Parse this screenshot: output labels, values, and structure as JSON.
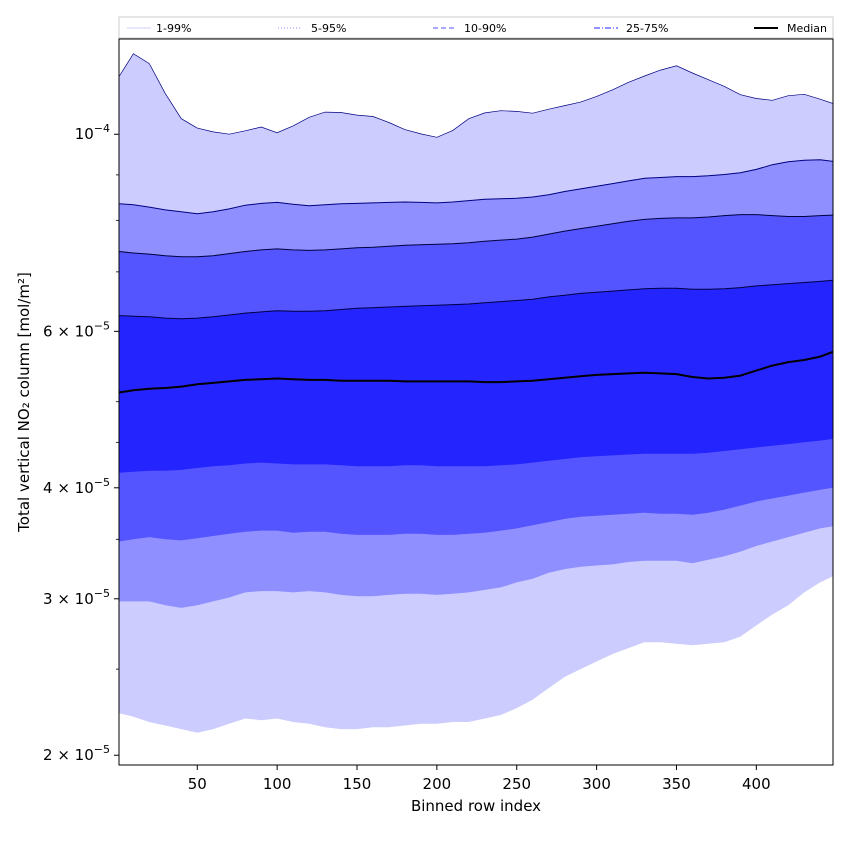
{
  "chart_data": {
    "type": "area",
    "title": "",
    "xlabel": "Binned row index",
    "ylabel": "Total vertical NO₂ column [mol/m²]",
    "xlim": [
      1,
      448
    ],
    "ylim": [
      1.95e-05,
      0.000128
    ],
    "yscale": "log",
    "grid": false,
    "legend_position": "top",
    "xticks": [
      50,
      100,
      150,
      200,
      250,
      300,
      350,
      400
    ],
    "xtick_labels": [
      "50",
      "100",
      "150",
      "200",
      "250",
      "300",
      "350",
      "400"
    ],
    "yticks": [
      2e-05,
      3e-05,
      4e-05,
      6e-05,
      0.0001
    ],
    "ytick_labels": [
      {
        "mantissa": "2",
        "exp": "−5"
      },
      {
        "mantissa": "3",
        "exp": "−5"
      },
      {
        "mantissa": "4",
        "exp": "−5"
      },
      {
        "mantissa": "6",
        "exp": "−5"
      },
      {
        "mantissa": "",
        "exp": "−4"
      }
    ],
    "x": [
      1,
      10,
      20,
      30,
      40,
      50,
      60,
      70,
      80,
      90,
      100,
      110,
      120,
      130,
      140,
      150,
      160,
      170,
      180,
      190,
      200,
      210,
      220,
      230,
      240,
      250,
      260,
      270,
      280,
      290,
      300,
      310,
      320,
      330,
      340,
      350,
      360,
      370,
      380,
      390,
      400,
      410,
      420,
      430,
      440,
      448
    ],
    "bands": [
      {
        "name": "1-99%",
        "color": "#ccccff",
        "line_color": "#000080",
        "lower": [
          2.23e-05,
          2.21e-05,
          2.18e-05,
          2.16e-05,
          2.14e-05,
          2.12e-05,
          2.14e-05,
          2.17e-05,
          2.2e-05,
          2.19e-05,
          2.2e-05,
          2.18e-05,
          2.17e-05,
          2.15e-05,
          2.14e-05,
          2.14e-05,
          2.15e-05,
          2.15e-05,
          2.16e-05,
          2.17e-05,
          2.17e-05,
          2.18e-05,
          2.18e-05,
          2.2e-05,
          2.22e-05,
          2.26e-05,
          2.31e-05,
          2.38e-05,
          2.45e-05,
          2.5e-05,
          2.55e-05,
          2.6e-05,
          2.64e-05,
          2.68e-05,
          2.68e-05,
          2.67e-05,
          2.66e-05,
          2.67e-05,
          2.68e-05,
          2.72e-05,
          2.8e-05,
          2.88e-05,
          2.95e-05,
          3.05e-05,
          3.13e-05,
          3.18e-05
        ],
        "upper": [
          0.0001161,
          0.0001232,
          0.0001201,
          0.0001111,
          0.0001041,
          0.0001016,
          0.0001006,
          0.0001,
          0.0001009,
          0.0001019,
          0.0001004,
          0.0001022,
          0.0001045,
          0.0001059,
          0.0001058,
          0.0001051,
          0.0001047,
          0.0001031,
          0.0001012,
          0.0001001,
          9.92e-05,
          0.000101,
          0.0001041,
          0.0001057,
          0.0001063,
          0.0001061,
          0.0001056,
          0.0001067,
          0.0001077,
          0.0001087,
          0.0001103,
          0.0001122,
          0.0001144,
          0.0001163,
          0.0001181,
          0.0001194,
          0.0001172,
          0.0001152,
          0.0001132,
          0.0001108,
          0.0001097,
          0.0001092,
          0.0001105,
          0.0001109,
          0.0001095,
          0.0001083
        ]
      },
      {
        "name": "5-95%",
        "color": "#8f8fff",
        "line_color": "#000080",
        "lower": [
          2.98e-05,
          2.98e-05,
          2.98e-05,
          2.95e-05,
          2.93e-05,
          2.95e-05,
          2.98e-05,
          3.01e-05,
          3.05e-05,
          3.06e-05,
          3.06e-05,
          3.05e-05,
          3.06e-05,
          3.05e-05,
          3.03e-05,
          3.02e-05,
          3.02e-05,
          3.03e-05,
          3.04e-05,
          3.04e-05,
          3.03e-05,
          3.04e-05,
          3.05e-05,
          3.07e-05,
          3.09e-05,
          3.13e-05,
          3.16e-05,
          3.21e-05,
          3.24e-05,
          3.26e-05,
          3.27e-05,
          3.28e-05,
          3.3e-05,
          3.31e-05,
          3.31e-05,
          3.31e-05,
          3.29e-05,
          3.32e-05,
          3.35e-05,
          3.39e-05,
          3.44e-05,
          3.48e-05,
          3.52e-05,
          3.56e-05,
          3.6e-05,
          3.62e-05
        ],
        "upper": [
          8.35e-05,
          8.33e-05,
          8.28e-05,
          8.22e-05,
          8.18e-05,
          8.14e-05,
          8.18e-05,
          8.24e-05,
          8.32e-05,
          8.36e-05,
          8.38e-05,
          8.34e-05,
          8.31e-05,
          8.33e-05,
          8.35e-05,
          8.36e-05,
          8.37e-05,
          8.38e-05,
          8.39e-05,
          8.38e-05,
          8.37e-05,
          8.39e-05,
          8.42e-05,
          8.45e-05,
          8.46e-05,
          8.47e-05,
          8.5e-05,
          8.55e-05,
          8.62e-05,
          8.68e-05,
          8.74e-05,
          8.8e-05,
          8.86e-05,
          8.92e-05,
          8.94e-05,
          8.96e-05,
          8.96e-05,
          8.98e-05,
          9.01e-05,
          9.05e-05,
          9.13e-05,
          9.24e-05,
          9.31e-05,
          9.35e-05,
          9.36e-05,
          9.32e-05
        ]
      },
      {
        "name": "10-90%",
        "color": "#5555ff",
        "line_color": "#000040",
        "lower": [
          3.48e-05,
          3.5e-05,
          3.52e-05,
          3.5e-05,
          3.49e-05,
          3.51e-05,
          3.53e-05,
          3.55e-05,
          3.57e-05,
          3.58e-05,
          3.58e-05,
          3.56e-05,
          3.57e-05,
          3.57e-05,
          3.55e-05,
          3.54e-05,
          3.54e-05,
          3.54e-05,
          3.55e-05,
          3.55e-05,
          3.54e-05,
          3.54e-05,
          3.55e-05,
          3.56e-05,
          3.58e-05,
          3.6e-05,
          3.63e-05,
          3.66e-05,
          3.69e-05,
          3.71e-05,
          3.72e-05,
          3.73e-05,
          3.74e-05,
          3.75e-05,
          3.74e-05,
          3.74e-05,
          3.73e-05,
          3.75e-05,
          3.78e-05,
          3.82e-05,
          3.86e-05,
          3.89e-05,
          3.92e-05,
          3.95e-05,
          3.98e-05,
          4e-05
        ],
        "upper": [
          7.38e-05,
          7.35e-05,
          7.33e-05,
          7.3e-05,
          7.28e-05,
          7.28e-05,
          7.3e-05,
          7.34e-05,
          7.38e-05,
          7.41e-05,
          7.43e-05,
          7.41e-05,
          7.4e-05,
          7.41e-05,
          7.43e-05,
          7.45e-05,
          7.46e-05,
          7.48e-05,
          7.5e-05,
          7.51e-05,
          7.52e-05,
          7.53e-05,
          7.55e-05,
          7.58e-05,
          7.6e-05,
          7.62e-05,
          7.66e-05,
          7.72e-05,
          7.78e-05,
          7.83e-05,
          7.88e-05,
          7.93e-05,
          7.98e-05,
          8.02e-05,
          8.04e-05,
          8.05e-05,
          8.05e-05,
          8.07e-05,
          8.1e-05,
          8.12e-05,
          8.12e-05,
          8.1e-05,
          8.08e-05,
          8.08e-05,
          8.1e-05,
          8.11e-05
        ]
      },
      {
        "name": "25-75%",
        "color": "#2424ff",
        "line_color": "#000040",
        "lower": [
          4.16e-05,
          4.17e-05,
          4.18e-05,
          4.18e-05,
          4.19e-05,
          4.21e-05,
          4.23e-05,
          4.24e-05,
          4.26e-05,
          4.27e-05,
          4.26e-05,
          4.25e-05,
          4.25e-05,
          4.25e-05,
          4.24e-05,
          4.23e-05,
          4.23e-05,
          4.23e-05,
          4.24e-05,
          4.24e-05,
          4.23e-05,
          4.23e-05,
          4.23e-05,
          4.23e-05,
          4.24e-05,
          4.25e-05,
          4.27e-05,
          4.29e-05,
          4.31e-05,
          4.33e-05,
          4.34e-05,
          4.35e-05,
          4.36e-05,
          4.37e-05,
          4.37e-05,
          4.37e-05,
          4.37e-05,
          4.38e-05,
          4.4e-05,
          4.42e-05,
          4.44e-05,
          4.46e-05,
          4.48e-05,
          4.5e-05,
          4.52e-05,
          4.54e-05
        ],
        "upper": [
          6.25e-05,
          6.24e-05,
          6.23e-05,
          6.21e-05,
          6.2e-05,
          6.21e-05,
          6.23e-05,
          6.26e-05,
          6.29e-05,
          6.31e-05,
          6.33e-05,
          6.32e-05,
          6.32e-05,
          6.33e-05,
          6.35e-05,
          6.37e-05,
          6.38e-05,
          6.39e-05,
          6.4e-05,
          6.41e-05,
          6.42e-05,
          6.43e-05,
          6.44e-05,
          6.46e-05,
          6.48e-05,
          6.5e-05,
          6.52e-05,
          6.56e-05,
          6.59e-05,
          6.62e-05,
          6.64e-05,
          6.66e-05,
          6.68e-05,
          6.7e-05,
          6.71e-05,
          6.71e-05,
          6.69e-05,
          6.69e-05,
          6.7e-05,
          6.72e-05,
          6.75e-05,
          6.77e-05,
          6.79e-05,
          6.81e-05,
          6.83e-05,
          6.85e-05
        ]
      }
    ],
    "median": {
      "name": "Median",
      "color": "#000000",
      "values": [
        5.12e-05,
        5.15e-05,
        5.17e-05,
        5.18e-05,
        5.2e-05,
        5.23e-05,
        5.25e-05,
        5.27e-05,
        5.29e-05,
        5.3e-05,
        5.31e-05,
        5.3e-05,
        5.29e-05,
        5.29e-05,
        5.28e-05,
        5.28e-05,
        5.28e-05,
        5.28e-05,
        5.27e-05,
        5.27e-05,
        5.27e-05,
        5.27e-05,
        5.27e-05,
        5.26e-05,
        5.26e-05,
        5.27e-05,
        5.28e-05,
        5.3e-05,
        5.32e-05,
        5.34e-05,
        5.36e-05,
        5.37e-05,
        5.38e-05,
        5.39e-05,
        5.38e-05,
        5.37e-05,
        5.33e-05,
        5.31e-05,
        5.32e-05,
        5.35e-05,
        5.42e-05,
        5.49e-05,
        5.54e-05,
        5.57e-05,
        5.62e-05,
        5.69e-05
      ]
    },
    "legend": [
      {
        "label": "1-99%",
        "line_color": "#ccccff",
        "dash": "none"
      },
      {
        "label": "5-95%",
        "line_color": "#8f8fff",
        "dash": "dotted"
      },
      {
        "label": "10-90%",
        "line_color": "#5555ff",
        "dash": "dashed"
      },
      {
        "label": "25-75%",
        "line_color": "#2424ff",
        "dash": "dashdot"
      },
      {
        "label": "Median",
        "line_color": "#000000",
        "dash": "solid"
      }
    ]
  }
}
